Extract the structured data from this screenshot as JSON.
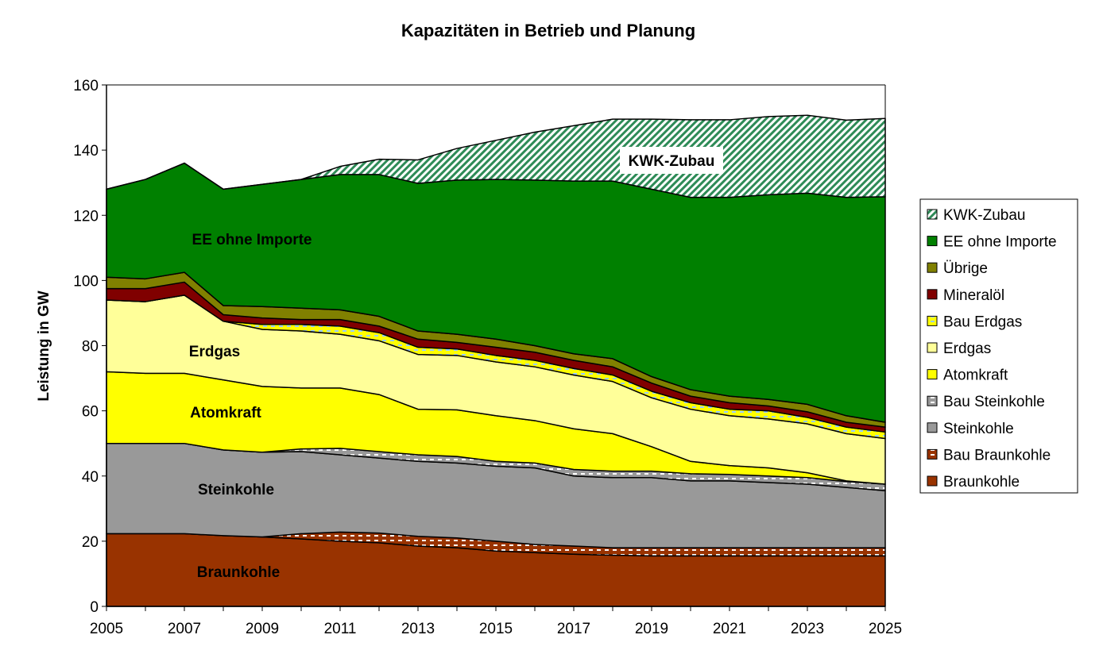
{
  "chart_data": {
    "type": "area",
    "stacked": true,
    "title": "Kapazitäten in Betrieb und Planung",
    "xlabel": "",
    "ylabel": "Leistung in GW",
    "ylim": [
      0,
      160
    ],
    "yticks": [
      0,
      20,
      40,
      60,
      80,
      100,
      120,
      140,
      160
    ],
    "x": [
      2005,
      2006,
      2007,
      2008,
      2009,
      2010,
      2011,
      2012,
      2013,
      2014,
      2015,
      2016,
      2017,
      2018,
      2019,
      2020,
      2021,
      2022,
      2023,
      2024,
      2025
    ],
    "xtick_labels": [
      "2005",
      "2007",
      "2009",
      "2011",
      "2013",
      "2015",
      "2017",
      "2019",
      "2021",
      "2023",
      "2025"
    ],
    "legend_position": "right",
    "series": [
      {
        "name": "Braunkohle",
        "color": "#993300",
        "pattern": "solid",
        "values": [
          22.3,
          22.3,
          22.3,
          21.7,
          21.3,
          20.7,
          20,
          19.5,
          18.5,
          18,
          17,
          16.5,
          16,
          15.7,
          15.5,
          15.5,
          15.5,
          15.5,
          15.5,
          15.5,
          15.5
        ]
      },
      {
        "name": "Bau Braunkohle",
        "color": "#993300",
        "pattern": "dashes-white",
        "values": [
          0,
          0,
          0,
          0,
          0,
          1.6,
          2.8,
          3,
          3,
          3,
          3,
          2.5,
          2.5,
          2.3,
          2.5,
          2.5,
          2.5,
          2.5,
          2.5,
          2.5,
          2.5
        ]
      },
      {
        "name": "Steinkohle",
        "color": "#999999",
        "pattern": "solid",
        "values": [
          27.7,
          27.7,
          27.7,
          26.3,
          26,
          25.2,
          23.7,
          23,
          23,
          23,
          23,
          23.5,
          21.5,
          21.5,
          21.5,
          20.5,
          20.5,
          20,
          19.5,
          18.5,
          17.5
        ]
      },
      {
        "name": "Bau Steinkohle",
        "color": "#999999",
        "pattern": "dashes-white",
        "values": [
          0,
          0,
          0,
          0,
          0,
          0.8,
          2,
          2,
          2,
          2,
          1.5,
          1.5,
          2,
          2,
          2,
          2.2,
          2,
          2,
          2,
          1.8,
          2
        ]
      },
      {
        "name": "Atomkraft",
        "color": "#FFFF00",
        "pattern": "solid",
        "values": [
          22,
          21.5,
          21.5,
          21.5,
          20.2,
          18.7,
          18.5,
          17.5,
          14,
          14.3,
          14,
          13,
          12.5,
          11.5,
          7.5,
          3.8,
          2.7,
          2.5,
          1.5,
          0.2,
          0
        ]
      },
      {
        "name": "Erdgas",
        "color": "#FFFF99",
        "pattern": "solid",
        "values": [
          22,
          22,
          24,
          18,
          17.5,
          17.5,
          16.5,
          16.5,
          16.8,
          16.7,
          16.5,
          16.5,
          16.5,
          16,
          15,
          16,
          15.3,
          15,
          15,
          14.5,
          14
        ]
      },
      {
        "name": "Bau Erdgas",
        "color": "#FFFF00",
        "pattern": "dashes-blue",
        "values": [
          0,
          0,
          0,
          0,
          1.5,
          2,
          2.5,
          2.5,
          2.2,
          2,
          2,
          2,
          2,
          2,
          2,
          2,
          2,
          2.5,
          2,
          2,
          2
        ]
      },
      {
        "name": "Mineralöl",
        "color": "#800000",
        "pattern": "solid",
        "values": [
          3.5,
          4,
          4,
          2,
          2,
          1.5,
          2,
          2,
          2.5,
          2,
          2.5,
          2.5,
          2.5,
          2.5,
          2.5,
          2,
          2,
          1.5,
          1.7,
          1.5,
          1.5
        ]
      },
      {
        "name": "Übrige",
        "color": "#808000",
        "pattern": "solid",
        "values": [
          3.5,
          3,
          3,
          2.8,
          3.5,
          3.5,
          3,
          3,
          2.5,
          2.5,
          2.5,
          2,
          2,
          2.5,
          2,
          2,
          2,
          2,
          2.3,
          2,
          1.5
        ]
      },
      {
        "name": "EE ohne Importe",
        "color": "#008000",
        "pattern": "solid",
        "values": [
          27,
          30.5,
          33.5,
          35.7,
          37.5,
          39.5,
          41.5,
          43.5,
          45.3,
          47.3,
          49,
          50.8,
          53,
          54.5,
          57.5,
          59,
          61,
          62.8,
          64.8,
          67,
          69.2
        ]
      },
      {
        "name": "KWK-Zubau",
        "color": "#339966",
        "pattern": "hatch",
        "values": [
          0,
          0,
          0,
          0,
          0,
          0,
          2.5,
          4.7,
          7.2,
          9.7,
          12,
          14.7,
          17,
          19,
          21.5,
          23.8,
          23.8,
          24,
          23.9,
          23.7,
          24
        ]
      }
    ],
    "annotations": [
      "KWK-Zubau",
      "EE ohne Importe",
      "Erdgas",
      "Atomkraft",
      "Steinkohle",
      "Braunkohle"
    ]
  }
}
